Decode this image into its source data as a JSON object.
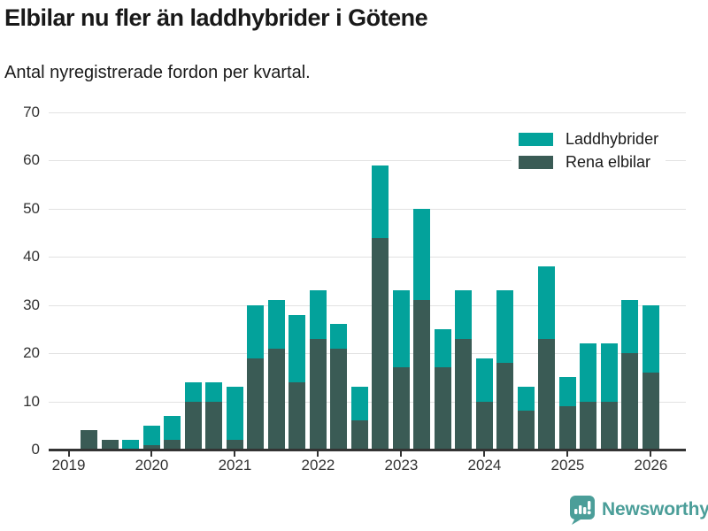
{
  "header": {
    "title": "Elbilar nu fler än laddhybrider i Götene",
    "subtitle": "Antal nyregistrerade fordon per kvartal."
  },
  "legend": {
    "position": "top-right",
    "items": [
      {
        "label": "Laddhybrider",
        "color": "#03a29b"
      },
      {
        "label": "Rena elbilar",
        "color": "#3a5b55"
      }
    ]
  },
  "footer": {
    "brand": "Newsworthy",
    "logo_icon": "newsworthy-speech-bubble-chart-icon",
    "brand_color": "#4b9e99"
  },
  "chart_data": {
    "type": "bar",
    "stacked": true,
    "title": "Elbilar nu fler än laddhybrider i Götene",
    "subtitle": "Antal nyregistrerade fordon per kvartal.",
    "x": [
      "2019 Q1",
      "2019 Q2",
      "2019 Q3",
      "2019 Q4",
      "2020 Q1",
      "2020 Q2",
      "2020 Q3",
      "2020 Q4",
      "2021 Q1",
      "2021 Q2",
      "2021 Q3",
      "2021 Q4",
      "2022 Q1",
      "2022 Q2",
      "2022 Q3",
      "2022 Q4",
      "2023 Q1",
      "2023 Q2",
      "2023 Q3",
      "2023 Q4",
      "2024 Q1",
      "2024 Q2",
      "2024 Q3",
      "2024 Q4",
      "2025 Q1",
      "2025 Q2",
      "2025 Q3",
      "2025 Q4",
      "2026 Q1"
    ],
    "series": [
      {
        "name": "Laddhybrider",
        "stack": "top",
        "color": "#03a29b",
        "values": [
          0,
          0,
          0,
          2,
          4,
          5,
          4,
          4,
          11,
          11,
          10,
          14,
          10,
          5,
          7,
          15,
          16,
          19,
          8,
          10,
          9,
          15,
          5,
          15,
          6,
          12,
          12,
          11,
          14
        ]
      },
      {
        "name": "Rena elbilar",
        "stack": "bottom",
        "color": "#3a5b55",
        "values": [
          0,
          4,
          2,
          0,
          1,
          2,
          10,
          10,
          2,
          19,
          21,
          14,
          23,
          21,
          6,
          44,
          17,
          31,
          17,
          23,
          10,
          18,
          8,
          23,
          9,
          10,
          10,
          20,
          16
        ]
      }
    ],
    "totals": [
      0,
      4,
      2,
      2,
      5,
      7,
      14,
      14,
      13,
      30,
      31,
      28,
      33,
      26,
      13,
      59,
      33,
      50,
      25,
      33,
      19,
      33,
      13,
      38,
      15,
      22,
      22,
      31,
      30
    ],
    "ylim": [
      0,
      70
    ],
    "y_ticks": [
      0,
      10,
      20,
      30,
      40,
      50,
      60,
      70
    ],
    "x_tick_labels": [
      "2019",
      "2020",
      "2021",
      "2022",
      "2023",
      "2024",
      "2025",
      "2026"
    ],
    "x_tick_indices": [
      0,
      4,
      8,
      12,
      16,
      20,
      24,
      28
    ],
    "grid": "horizontal",
    "legend_position": "top-right"
  }
}
